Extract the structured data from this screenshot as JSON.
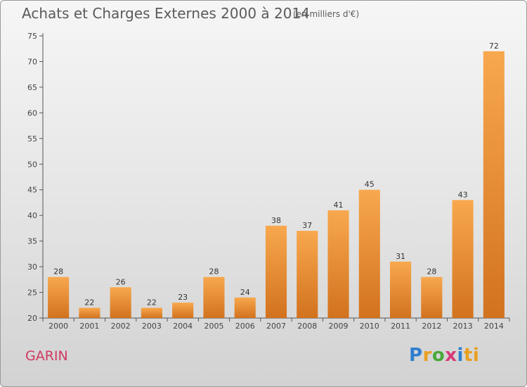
{
  "header": {
    "title": "Achats et Charges Externes 2000 à 2014",
    "subtitle": "(en milliers d'€)"
  },
  "footer": {
    "commune": "GARIN",
    "logo_letters": [
      "P",
      "r",
      "o",
      "x",
      "i",
      "ti"
    ]
  },
  "colors": {
    "bar_light": "#f8a84e",
    "bar_dark": "#d2721e",
    "axis": "#555555",
    "grid": "#cfcfcf",
    "commune": "#d0395f"
  },
  "chart_data": {
    "type": "bar",
    "title": "Achats et Charges Externes 2000 à 2014",
    "subtitle": "(en milliers d'€)",
    "xlabel": "",
    "ylabel": "",
    "categories": [
      "2000",
      "2001",
      "2002",
      "2003",
      "2004",
      "2005",
      "2006",
      "2007",
      "2008",
      "2009",
      "2010",
      "2011",
      "2012",
      "2013",
      "2014"
    ],
    "values": [
      28,
      22,
      26,
      22,
      23,
      28,
      24,
      38,
      37,
      41,
      45,
      31,
      28,
      43,
      72
    ],
    "ylim": [
      20,
      75
    ],
    "yticks": [
      20,
      25,
      30,
      35,
      40,
      45,
      50,
      55,
      60,
      65,
      70,
      75
    ],
    "grid": false,
    "legend": "none"
  }
}
